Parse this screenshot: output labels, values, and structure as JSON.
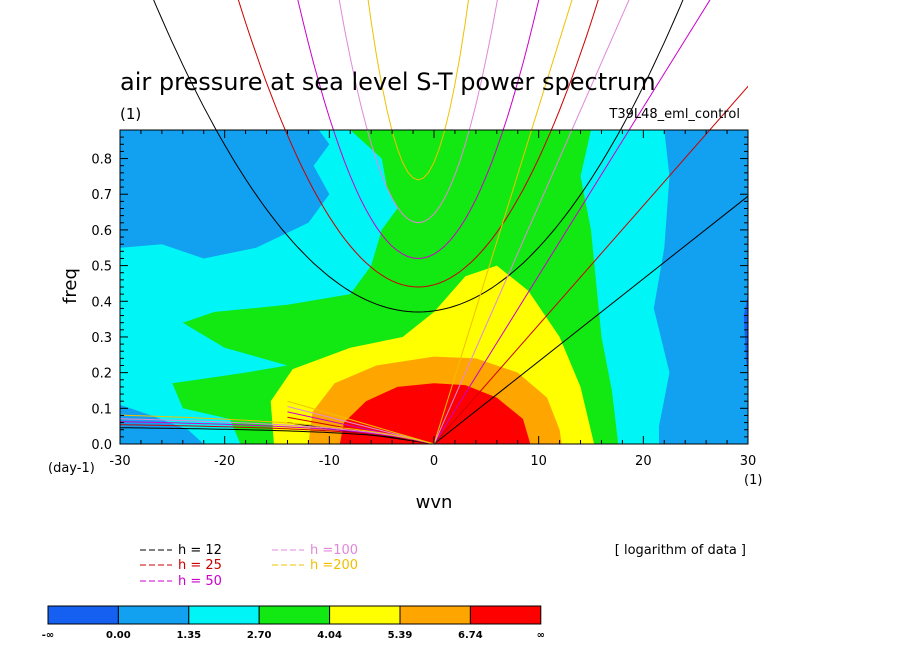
{
  "chart_data": {
    "type": "heatmap",
    "title": "air pressure at sea level S-T power spectrum",
    "subtitle_left": "(1)",
    "subtitle_right": "T39L48_eml_control",
    "xlabel": "wvn",
    "ylabel": "freq",
    "x_unit_label": "(1)",
    "y_unit_label": "(day-1)",
    "xlim": [
      -30,
      30
    ],
    "ylim": [
      0,
      0.88
    ],
    "xticks": [
      -30,
      -20,
      -10,
      0,
      10,
      20,
      30
    ],
    "xtick_labels": [
      "-30",
      "-20",
      "-10",
      "0",
      "10",
      "20",
      "30"
    ],
    "yticks": [
      0,
      0.1,
      0.2,
      0.3,
      0.4,
      0.5,
      0.6,
      0.7,
      0.8
    ],
    "ytick_labels": [
      "0.0",
      "0.1",
      "0.2",
      "0.3",
      "0.4",
      "0.5",
      "0.6",
      "0.7",
      "0.8"
    ],
    "colorbar": {
      "note": "[ logarithm of data ]",
      "labels": [
        "-∞",
        "0.00",
        "1.35",
        "2.70",
        "4.04",
        "5.39",
        "6.74",
        "∞"
      ],
      "colors": [
        "#1560f0",
        "#12a0f0",
        "#00f6f6",
        "#12e812",
        "#ffff00",
        "#ffa500",
        "#ff0000"
      ]
    },
    "contour_regions": [
      {
        "level": 6,
        "points": [
          [
            -9,
            0
          ],
          [
            -8.6,
            0.06
          ],
          [
            -6.5,
            0.12
          ],
          [
            -3.5,
            0.16
          ],
          [
            0,
            0.17
          ],
          [
            3,
            0.165
          ],
          [
            6,
            0.13
          ],
          [
            8.5,
            0.07
          ],
          [
            9.2,
            0
          ]
        ]
      },
      {
        "level": 5,
        "points": [
          [
            -12,
            0
          ],
          [
            -11.6,
            0.09
          ],
          [
            -9.5,
            0.17
          ],
          [
            -5.5,
            0.22
          ],
          [
            0,
            0.245
          ],
          [
            4,
            0.24
          ],
          [
            8,
            0.2
          ],
          [
            10.8,
            0.13
          ],
          [
            12,
            0.04
          ],
          [
            12.2,
            0
          ]
        ]
      },
      {
        "level": 4,
        "points": [
          [
            -15.3,
            0
          ],
          [
            -15.6,
            0.12
          ],
          [
            -13.5,
            0.21
          ],
          [
            -8,
            0.27
          ],
          [
            -3,
            0.3
          ],
          [
            0,
            0.37
          ],
          [
            3,
            0.47
          ],
          [
            6,
            0.5
          ],
          [
            9,
            0.43
          ],
          [
            12,
            0.3
          ],
          [
            14,
            0.16
          ],
          [
            15.3,
            0
          ]
        ]
      },
      {
        "level": 3,
        "points": [
          [
            -18.5,
            0
          ],
          [
            -19.5,
            0.07
          ],
          [
            -24,
            0.1
          ],
          [
            -25,
            0.17
          ],
          [
            -18,
            0.2
          ],
          [
            -14,
            0.22
          ],
          [
            -20,
            0.27
          ],
          [
            -24,
            0.34
          ],
          [
            -21,
            0.37
          ],
          [
            -14,
            0.39
          ],
          [
            -8,
            0.42
          ],
          [
            -6,
            0.5
          ],
          [
            -5,
            0.6
          ],
          [
            -3.5,
            0.66
          ],
          [
            -4.5,
            0.72
          ],
          [
            -5,
            0.8
          ],
          [
            -8,
            0.88
          ],
          [
            15,
            0.88
          ],
          [
            14,
            0.75
          ],
          [
            15,
            0.6
          ],
          [
            15.5,
            0.45
          ],
          [
            16,
            0.3
          ],
          [
            17,
            0.15
          ],
          [
            17.6,
            0
          ]
        ]
      },
      {
        "level": 2,
        "points": [
          [
            -22,
            0
          ],
          [
            -23.5,
            0.04
          ],
          [
            -27,
            0.08
          ],
          [
            -30,
            0.11
          ],
          [
            -30,
            0.55
          ],
          [
            -26,
            0.56
          ],
          [
            -22,
            0.52
          ],
          [
            -17,
            0.55
          ],
          [
            -12,
            0.62
          ],
          [
            -10,
            0.7
          ],
          [
            -11.5,
            0.78
          ],
          [
            -10,
            0.84
          ],
          [
            -11,
            0.88
          ],
          [
            22,
            0.88
          ],
          [
            22.5,
            0.75
          ],
          [
            22,
            0.55
          ],
          [
            21,
            0.38
          ],
          [
            22.5,
            0.2
          ],
          [
            21.5,
            0.05
          ],
          [
            21.5,
            0
          ]
        ]
      },
      {
        "level": 1,
        "points": [
          [
            -30,
            0.69
          ],
          [
            -27,
            0.7
          ],
          [
            -24,
            0.74
          ],
          [
            -21,
            0.8
          ],
          [
            -20,
            0.88
          ],
          [
            -30,
            0.88
          ]
        ]
      },
      {
        "level": 1,
        "points": [
          [
            -30,
            0.06
          ],
          [
            -29,
            0.03
          ],
          [
            -28,
            0
          ]
        ]
      },
      {
        "level": 0,
        "points": [
          [
            30,
            0.42
          ],
          [
            29.6,
            0.36
          ],
          [
            29.8,
            0.24
          ],
          [
            30,
            0.19
          ]
        ]
      }
    ],
    "dispersion_curves": [
      {
        "name": "h = 12",
        "color": "#000000",
        "kelvin_slope": 0.02315,
        "rossby_h": 0.0582,
        "rossby_k0": 8.2,
        "ig_f0": 0.37,
        "ig_c": 0.0151
      },
      {
        "name": "h = 25",
        "color": "#cc0000",
        "kelvin_slope": 0.0334,
        "rossby_h": 0.071,
        "rossby_k0": 9.4,
        "ig_f0": 0.44,
        "ig_c": 0.0213
      },
      {
        "name": "h = 50",
        "color": "#cc00cc",
        "kelvin_slope": 0.0472,
        "rossby_h": 0.085,
        "rossby_k0": 10.8,
        "ig_f0": 0.52,
        "ig_c": 0.0302
      },
      {
        "name": "h =100",
        "color": "#e088d8",
        "kelvin_slope": 0.0668,
        "rossby_h": 0.1,
        "rossby_k0": 12.5,
        "ig_f0": 0.62,
        "ig_c": 0.0427
      },
      {
        "name": "h =200",
        "color": "#f0c000",
        "kelvin_slope": 0.0944,
        "rossby_h": 0.12,
        "rossby_k0": 14.5,
        "ig_f0": 0.74,
        "ig_c": 0.0604
      }
    ]
  }
}
